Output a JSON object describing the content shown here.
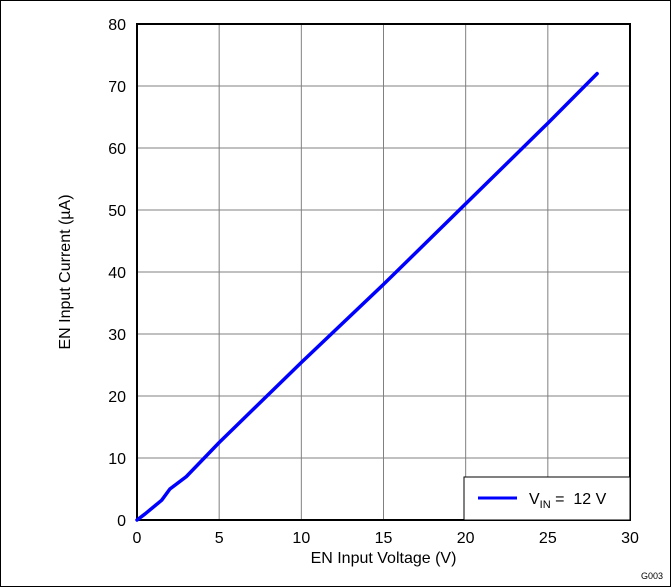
{
  "chart_data": {
    "type": "line",
    "xlabel": "EN Input Voltage (V)",
    "ylabel": "EN Input Current (µA)",
    "xlim": [
      0,
      30
    ],
    "ylim": [
      0,
      80
    ],
    "x_ticks": [
      0,
      5,
      10,
      15,
      20,
      25,
      30
    ],
    "y_ticks": [
      0,
      10,
      20,
      30,
      40,
      50,
      60,
      70,
      80
    ],
    "grid": true,
    "legend_position": "bottom-right",
    "series": [
      {
        "name_main": "V",
        "name_sub": "IN",
        "name_rest": " =  12 V",
        "color": "#0000ff",
        "x": [
          0,
          0.5,
          1.5,
          2,
          3,
          5,
          10,
          15,
          20,
          25,
          28
        ],
        "y": [
          0,
          1,
          3.2,
          5,
          7,
          12.5,
          25.4,
          38,
          51,
          64,
          72
        ]
      }
    ],
    "figure_code": "G003"
  }
}
